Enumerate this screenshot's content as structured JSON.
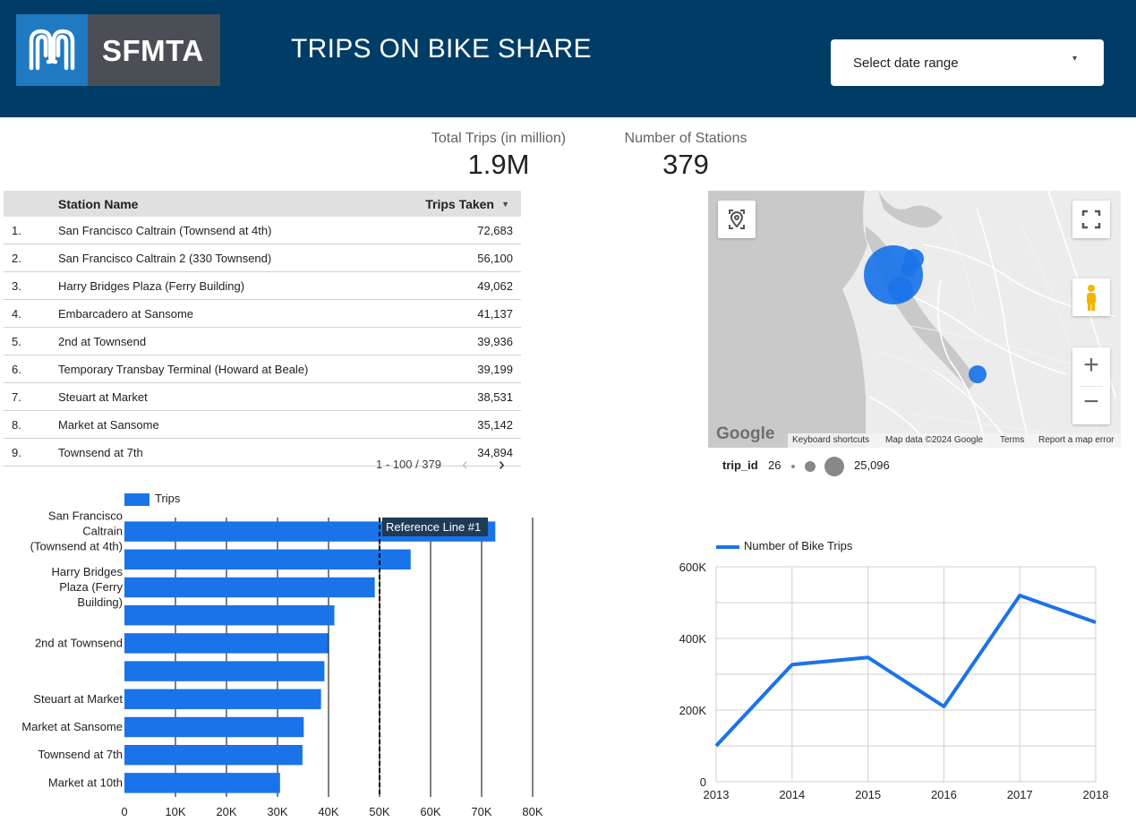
{
  "header": {
    "logo_text": "SFMTA",
    "title": "TRIPS ON BIKE SHARE",
    "date_select_label": "Select date range",
    "caret_icon": "▾",
    "bg_color": "#003d66"
  },
  "kpis": [
    {
      "label": "Total Trips (in million)",
      "value": "1.9M"
    },
    {
      "label": "Number of Stations",
      "value": "379"
    }
  ],
  "table": {
    "headers": {
      "name": "Station Name",
      "trips": "Trips Taken",
      "sort_icon": "▼"
    },
    "rows": [
      {
        "num": "1.",
        "name": "San Francisco Caltrain (Townsend at 4th)",
        "trips": "72,683"
      },
      {
        "num": "2.",
        "name": "San Francisco Caltrain 2 (330 Townsend)",
        "trips": "56,100"
      },
      {
        "num": "3.",
        "name": "Harry Bridges Plaza (Ferry Building)",
        "trips": "49,062"
      },
      {
        "num": "4.",
        "name": "Embarcadero at Sansome",
        "trips": "41,137"
      },
      {
        "num": "5.",
        "name": "2nd at Townsend",
        "trips": "39,936"
      },
      {
        "num": "6.",
        "name": "Temporary Transbay Terminal (Howard at Beale)",
        "trips": "39,199"
      },
      {
        "num": "7.",
        "name": "Steuart at Market",
        "trips": "38,531"
      },
      {
        "num": "8.",
        "name": "Market at Sansome",
        "trips": "35,142"
      },
      {
        "num": "9.",
        "name": "Townsend at 7th",
        "trips": "34,894"
      }
    ],
    "pagination": "1 - 100 / 379",
    "prev_icon": "‹",
    "next_icon": "›"
  },
  "map": {
    "google_label": "Google",
    "footer": [
      "Keyboard shortcuts",
      "Map data ©2024 Google",
      "Terms",
      "Report a map error"
    ],
    "zoom_in": "+",
    "zoom_out": "−",
    "size_legend": {
      "field": "trip_id",
      "min": "26",
      "max": "25,096"
    }
  },
  "chart_data": [
    {
      "type": "bar",
      "orientation": "horizontal",
      "legend": [
        "Trips"
      ],
      "categories": [
        "San Francisco Caltrain (Townsend at 4th)",
        "",
        "Harry Bridges Plaza (Ferry Building)",
        "",
        "2nd at Townsend",
        "",
        "Steuart at Market",
        "Market at Sansome",
        "Townsend at 7th",
        "Market at 10th"
      ],
      "values": [
        72683,
        56100,
        49062,
        41137,
        39936,
        39199,
        38531,
        35142,
        34894,
        30500
      ],
      "xticks": [
        "0",
        "10K",
        "20K",
        "30K",
        "40K",
        "50K",
        "60K",
        "70K",
        "80K"
      ],
      "xlim": [
        0,
        80000
      ],
      "reference_line": {
        "value": 50000,
        "label": "Reference Line #1"
      },
      "color": "#1a73e8"
    },
    {
      "type": "line",
      "legend": [
        "Number of Bike Trips"
      ],
      "x": [
        "2013",
        "2014",
        "2015",
        "2016",
        "2017",
        "2018"
      ],
      "values": [
        100000,
        327000,
        347000,
        210000,
        520000,
        445000
      ],
      "yticks": [
        "0",
        "200K",
        "400K",
        "600K"
      ],
      "ylim": [
        0,
        600000
      ],
      "color": "#1a73e8"
    }
  ]
}
